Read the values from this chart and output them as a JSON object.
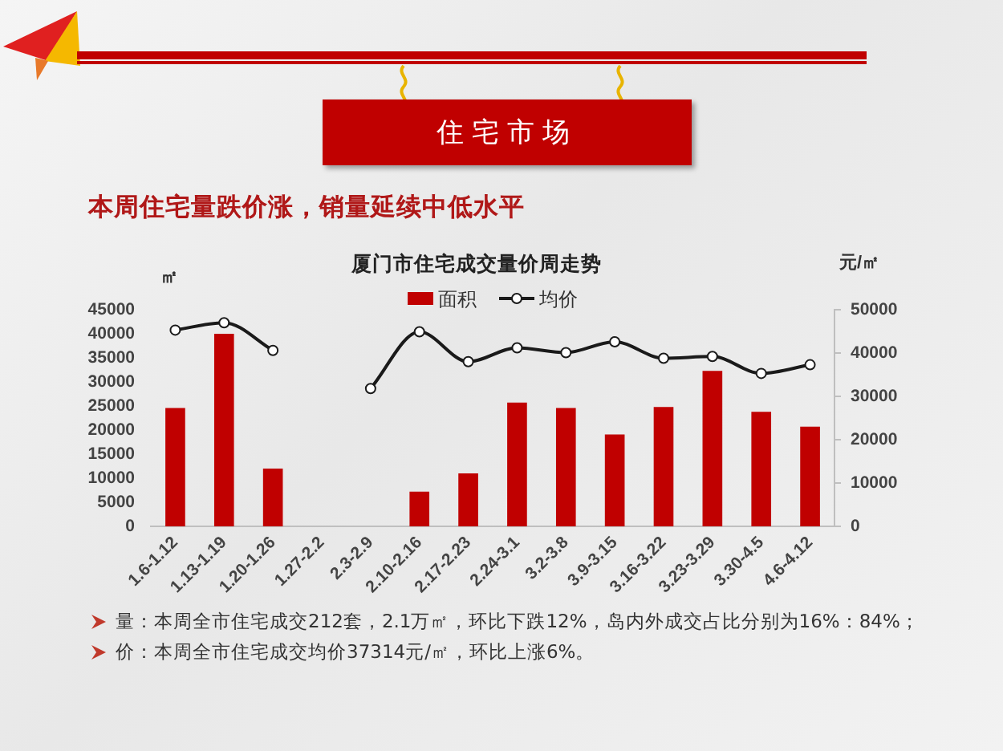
{
  "chart_data": {
    "type": "bar",
    "title": "厦门市住宅成交量价周走势",
    "subtitle": "本周住宅量跌价涨，销量延续中低水平",
    "ylabel": "㎡",
    "y2label": "元/㎡",
    "annotations": [
      "住宅市场",
      "量：本周全市住宅成交212套，2.1万㎡，环比下跌12%，岛内外成交占比分别为16%：84%；",
      "价：本周全市住宅成交均价37314元/㎡，环比上涨6%。"
    ],
    "categories": [
      "1.6-1.12",
      "1.13-1.19",
      "1.20-1.26",
      "1.27-2.2",
      "2.3-2.9",
      "2.10-2.16",
      "2.17-2.23",
      "2.24-3.1",
      "3.2-3.8",
      "3.9-3.15",
      "3.16-3.22",
      "3.23-3.29",
      "3.30-4.5",
      "4.6-4.12"
    ],
    "series": [
      {
        "name": "面积",
        "color": "#c00000",
        "values": [
          24600,
          40000,
          12000,
          null,
          null,
          7200,
          11000,
          25700,
          24600,
          19100,
          24800,
          32300,
          23800,
          20700
        ]
      },
      {
        "name": "均价",
        "type": "line",
        "axis": "y2",
        "color": "#1a1a1a",
        "values": [
          45300,
          47000,
          40600,
          null,
          31800,
          44900,
          38000,
          41200,
          40100,
          42600,
          38800,
          39200,
          35300,
          37300
        ]
      }
    ],
    "ylim": [
      0,
      45000
    ],
    "yticks": [
      0,
      5000,
      10000,
      15000,
      20000,
      25000,
      30000,
      35000,
      40000,
      45000
    ],
    "y2lim": [
      0,
      50000
    ],
    "y2ticks": [
      0,
      10000,
      20000,
      30000,
      40000,
      50000
    ],
    "grid": false,
    "legend": "top",
    "marker": "circle"
  }
}
